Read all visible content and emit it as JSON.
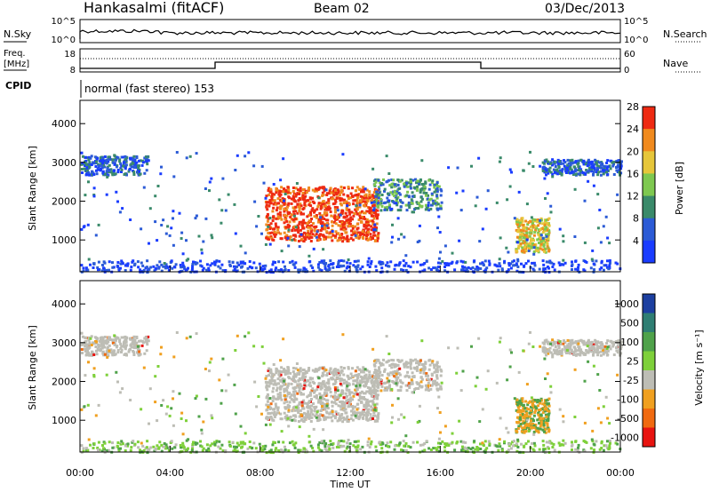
{
  "header": {
    "station": "Hankasalmi (fitACF)",
    "beam": "Beam 02",
    "date": "03/Dec/2013"
  },
  "top_panels": {
    "nsky": {
      "label": "N.Sky",
      "tick_top": "10^5",
      "tick_bottom": "10^0"
    },
    "nsearch": {
      "label": "N.Search",
      "tick_top": "10^5",
      "tick_bottom": "10^0"
    },
    "freq": {
      "label_line1": "Freq.",
      "label_line2": "[MHz]",
      "tick_top": "18",
      "tick_bottom": "8"
    },
    "nave": {
      "label": "Nave",
      "tick_top": "60",
      "tick_bottom": "0"
    },
    "cpid": {
      "label": "CPID",
      "text": "normal (fast stereo) 153"
    }
  },
  "chart_data": [
    {
      "type": "heatmap",
      "panel": "power",
      "ylabel": "Slant Range [km]",
      "ylim": [
        180,
        4600
      ],
      "yticks": [
        "1000",
        "2000",
        "3000",
        "4000"
      ],
      "xlim_hours": [
        0,
        24
      ],
      "colorbar": {
        "label": "Power [dB]",
        "ticks": [
          "4",
          "8",
          "12",
          "16",
          "20",
          "24",
          "28"
        ],
        "colors": [
          "#1a3cff",
          "#2c5bd6",
          "#3a8a6a",
          "#7ec850",
          "#e6c63a",
          "#f08a1e",
          "#ee2a12"
        ]
      },
      "features": [
        {
          "name": "polar-cap echoes",
          "hours": [
            0,
            3
          ],
          "range_km": [
            2700,
            3200
          ],
          "power_db": 8
        },
        {
          "name": "main echo region",
          "hours": [
            8.2,
            13.2
          ],
          "range_km": [
            1000,
            2400
          ],
          "power_db": 26
        },
        {
          "name": "afternoon band",
          "hours": [
            13,
            16
          ],
          "range_km": [
            1800,
            2600
          ],
          "power_db": 10
        },
        {
          "name": "evening echoes",
          "hours": [
            19.3,
            20.8
          ],
          "range_km": [
            700,
            1600
          ],
          "power_db": 20
        },
        {
          "name": "late band",
          "hours": [
            20.5,
            24
          ],
          "range_km": [
            2700,
            3100
          ],
          "power_db": 8
        }
      ]
    },
    {
      "type": "heatmap",
      "panel": "velocity",
      "ylabel": "Slant Range [km]",
      "ylim": [
        180,
        4600
      ],
      "yticks": [
        "1000",
        "2000",
        "3000",
        "4000"
      ],
      "xlim_hours": [
        0,
        24
      ],
      "colorbar": {
        "label": "Velocity [m s⁻¹]",
        "ticks": [
          "1000",
          "500",
          "100",
          "25",
          "-25",
          "-100",
          "-500",
          "-1000"
        ],
        "colors": [
          "#1c3fa0",
          "#2f7e73",
          "#4fa24a",
          "#7ed03a",
          "#bdbdb5",
          "#f0a020",
          "#f06a10",
          "#e81410"
        ]
      },
      "features": [
        {
          "name": "ground scatter band",
          "hours": [
            0,
            3
          ],
          "range_km": [
            2700,
            3200
          ],
          "velocity": 0
        },
        {
          "name": "main ground scatter",
          "hours": [
            8.2,
            13.2
          ],
          "range_km": [
            1000,
            2400
          ],
          "velocity": 0
        },
        {
          "name": "late ground scatter",
          "hours": [
            20.5,
            24
          ],
          "range_km": [
            2700,
            3100
          ],
          "velocity": 0
        }
      ]
    }
  ],
  "xaxis": {
    "ticks": [
      "00:00",
      "04:00",
      "08:00",
      "12:00",
      "16:00",
      "20:00",
      "00:00"
    ],
    "label": "Time UT"
  }
}
